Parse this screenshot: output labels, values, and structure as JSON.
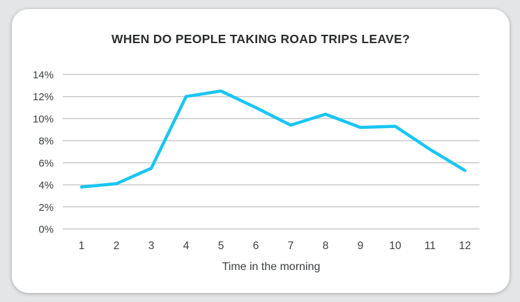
{
  "chart_data": {
    "type": "line",
    "title": "WHEN DO PEOPLE TAKING ROAD TRIPS LEAVE?",
    "xlabel": "Time in the morning",
    "ylabel": "",
    "categories": [
      "1",
      "2",
      "3",
      "4",
      "5",
      "6",
      "7",
      "8",
      "9",
      "10",
      "11",
      "12"
    ],
    "series": [
      {
        "name": "percent-leaving",
        "values": [
          3.8,
          4.1,
          5.5,
          12.0,
          12.5,
          11.0,
          9.4,
          10.4,
          9.2,
          9.3,
          7.2,
          5.3
        ],
        "color": "#18c6f2"
      }
    ],
    "y_ticks": [
      0,
      2,
      4,
      6,
      8,
      10,
      12,
      14
    ],
    "y_tick_labels": [
      "0%",
      "2%",
      "4%",
      "6%",
      "8%",
      "10%",
      "12%",
      "14%"
    ],
    "ylim": [
      0,
      14
    ],
    "grid": "horizontal",
    "legend": "none",
    "colors": {
      "line": "#18c6f2",
      "gridline": "#c9cacc",
      "card_background": "#ffffff",
      "page_background": "#e4e5e7",
      "title_text": "#2b2d2e",
      "axis_text": "#3c3e40"
    }
  }
}
